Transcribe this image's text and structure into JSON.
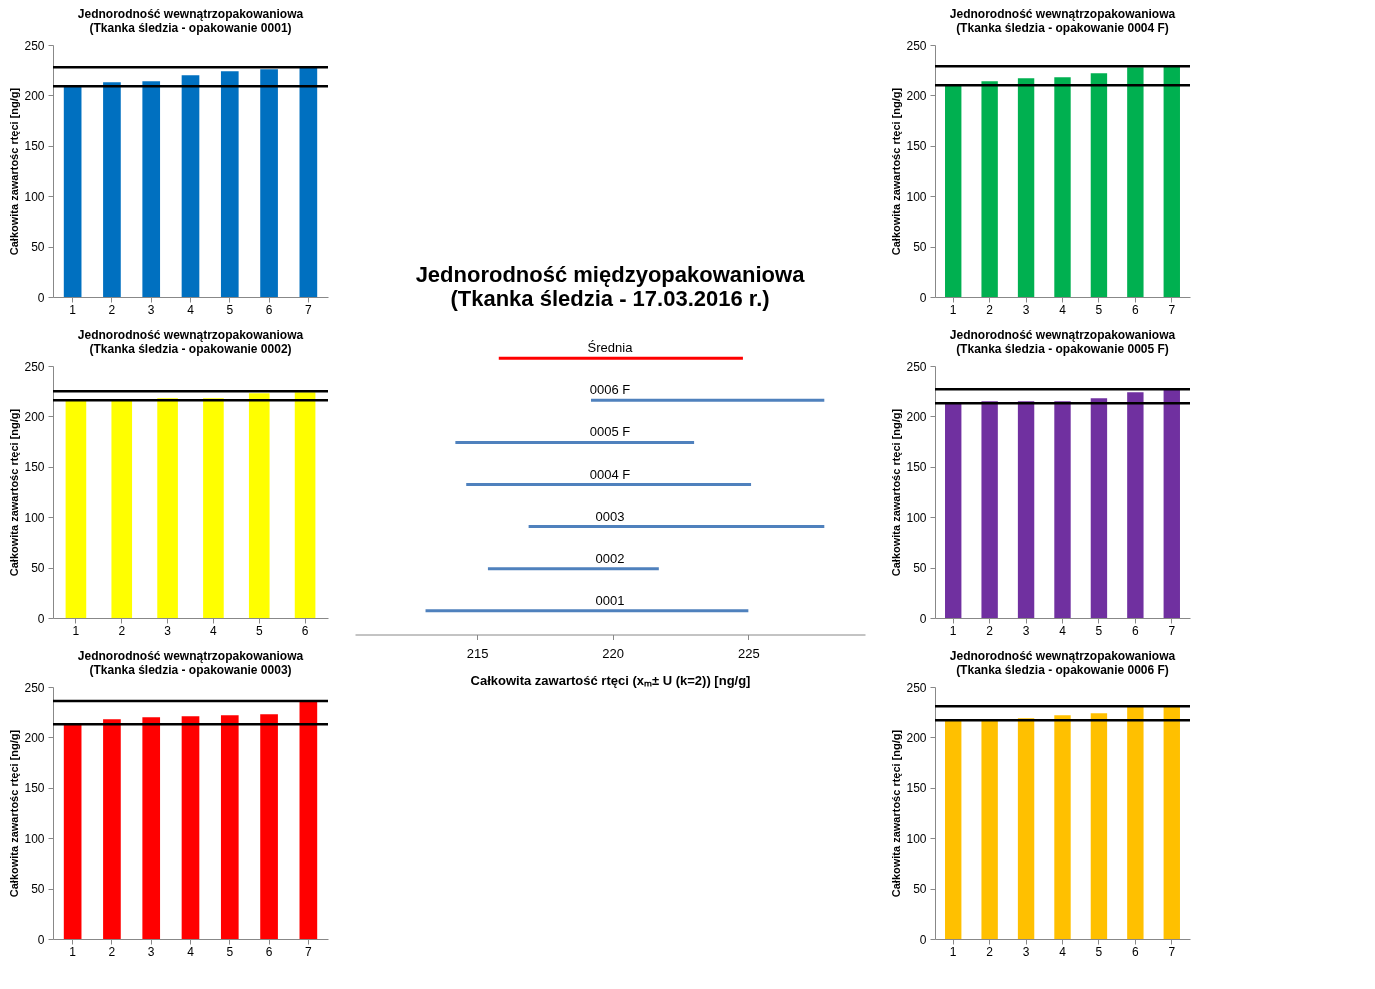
{
  "chart_data": [
    {
      "type": "bar",
      "title": "Jednorodność wewnątrzopakowaniowa\n(Tkanka śledzia - opakowanie 0001)",
      "ylabel": "Całkowita zawartośc rtęci [ng/g]",
      "categories": [
        "1",
        "2",
        "3",
        "4",
        "5",
        "6",
        "7"
      ],
      "values": [
        209,
        213,
        214,
        220,
        224,
        226,
        228
      ],
      "color": "#0070c0",
      "ylim": [
        0,
        250
      ],
      "yticks": [
        0,
        50,
        100,
        150,
        200,
        250
      ],
      "grid": false,
      "ref_lines": [
        {
          "axis": "y",
          "value": 228,
          "color": "#000000"
        },
        {
          "axis": "y",
          "value": 209,
          "color": "#000000"
        }
      ]
    },
    {
      "type": "bar",
      "title": "Jednorodność wewnątrzopakowaniowa\n(Tkanka śledzia - opakowanie 0004 F)",
      "ylabel": "Całkowita zawartośc rtęci [ng/g]",
      "categories": [
        "1",
        "2",
        "3",
        "4",
        "5",
        "6",
        "7"
      ],
      "values": [
        210,
        214,
        217,
        218,
        222,
        228,
        229
      ],
      "color": "#00b050",
      "ylim": [
        0,
        250
      ],
      "yticks": [
        0,
        50,
        100,
        150,
        200,
        250
      ],
      "grid": false,
      "ref_lines": [
        {
          "axis": "y",
          "value": 229,
          "color": "#000000"
        },
        {
          "axis": "y",
          "value": 210,
          "color": "#000000"
        }
      ]
    },
    {
      "type": "bar",
      "orientation": "horizontal",
      "title": "Jednorodność międzyopakowaniowa\n(Tkanka śledzia - 17.03.2016 r.)",
      "xlabel": "Całkowita zawartość rtęci (xₘ± U (k=2)) [ng/g]",
      "categories": [
        "Średnia",
        "0006 F",
        "0005 F",
        "0004 F",
        "0003",
        "0002",
        "0001"
      ],
      "base": [
        215.8,
        219.2,
        214.2,
        214.6,
        216.9,
        215.4,
        213.1
      ],
      "values": [
        9.0,
        8.6,
        8.8,
        10.5,
        10.9,
        6.3,
        11.9
      ],
      "colors": [
        "#ff0000",
        "#4f81bd",
        "#4f81bd",
        "#4f81bd",
        "#4f81bd",
        "#4f81bd",
        "#4f81bd"
      ],
      "xlim": [
        210.5,
        229.3
      ],
      "xticks": [
        215,
        220,
        225
      ],
      "grid": false
    },
    {
      "type": "bar",
      "title": "Jednorodność wewnątrzopakowaniowa\n(Tkanka śledzia - opakowanie 0002)",
      "ylabel": "Całkowita zawartośc rtęci [ng/g]",
      "categories": [
        "1",
        "2",
        "3",
        "4",
        "5",
        "6"
      ],
      "values": [
        216,
        217,
        218,
        218,
        223,
        224
      ],
      "color": "#ffff00",
      "ylim": [
        0,
        250
      ],
      "yticks": [
        0,
        50,
        100,
        150,
        200,
        250
      ],
      "grid": false,
      "ref_lines": [
        {
          "axis": "y",
          "value": 225,
          "color": "#000000"
        },
        {
          "axis": "y",
          "value": 216,
          "color": "#000000"
        }
      ]
    },
    {
      "type": "bar",
      "title": "Jednorodność wewnątrzopakowaniowa\n(Tkanka śledzia - opakowanie 0005 F)",
      "ylabel": "Całkowita zawartośc rtęci [ng/g]",
      "categories": [
        "1",
        "2",
        "3",
        "4",
        "5",
        "6",
        "7"
      ],
      "values": [
        213,
        215,
        215,
        215,
        218,
        224,
        227
      ],
      "color": "#7030a0",
      "ylim": [
        0,
        250
      ],
      "yticks": [
        0,
        50,
        100,
        150,
        200,
        250
      ],
      "grid": false,
      "ref_lines": [
        {
          "axis": "y",
          "value": 227,
          "color": "#000000"
        },
        {
          "axis": "y",
          "value": 213,
          "color": "#000000"
        }
      ]
    },
    {
      "type": "bar",
      "title": "Jednorodność wewnątrzopakowaniowa\n(Tkanka śledzia - opakowanie 0003)",
      "ylabel": "Całkowita zawartośc rtęci [ng/g]",
      "categories": [
        "1",
        "2",
        "3",
        "4",
        "5",
        "6",
        "7"
      ],
      "values": [
        213,
        218,
        220,
        221,
        222,
        223,
        236
      ],
      "color": "#ff0000",
      "ylim": [
        0,
        250
      ],
      "yticks": [
        0,
        50,
        100,
        150,
        200,
        250
      ],
      "grid": false,
      "ref_lines": [
        {
          "axis": "y",
          "value": 236,
          "color": "#000000"
        },
        {
          "axis": "y",
          "value": 213,
          "color": "#000000"
        }
      ]
    },
    {
      "type": "bar",
      "title": "Jednorodność wewnątrzopakowaniowa\n(Tkanka śledzia - opakowanie 0006 F)",
      "ylabel": "Całkowita zawartośc rtęci [ng/g]",
      "categories": [
        "1",
        "2",
        "3",
        "4",
        "5",
        "6",
        "7"
      ],
      "values": [
        217,
        217,
        219,
        222,
        224,
        231,
        231
      ],
      "color": "#ffc000",
      "ylim": [
        0,
        250
      ],
      "yticks": [
        0,
        50,
        100,
        150,
        200,
        250
      ],
      "grid": false,
      "ref_lines": [
        {
          "axis": "y",
          "value": 231,
          "color": "#000000"
        },
        {
          "axis": "y",
          "value": 217,
          "color": "#000000"
        }
      ]
    }
  ]
}
